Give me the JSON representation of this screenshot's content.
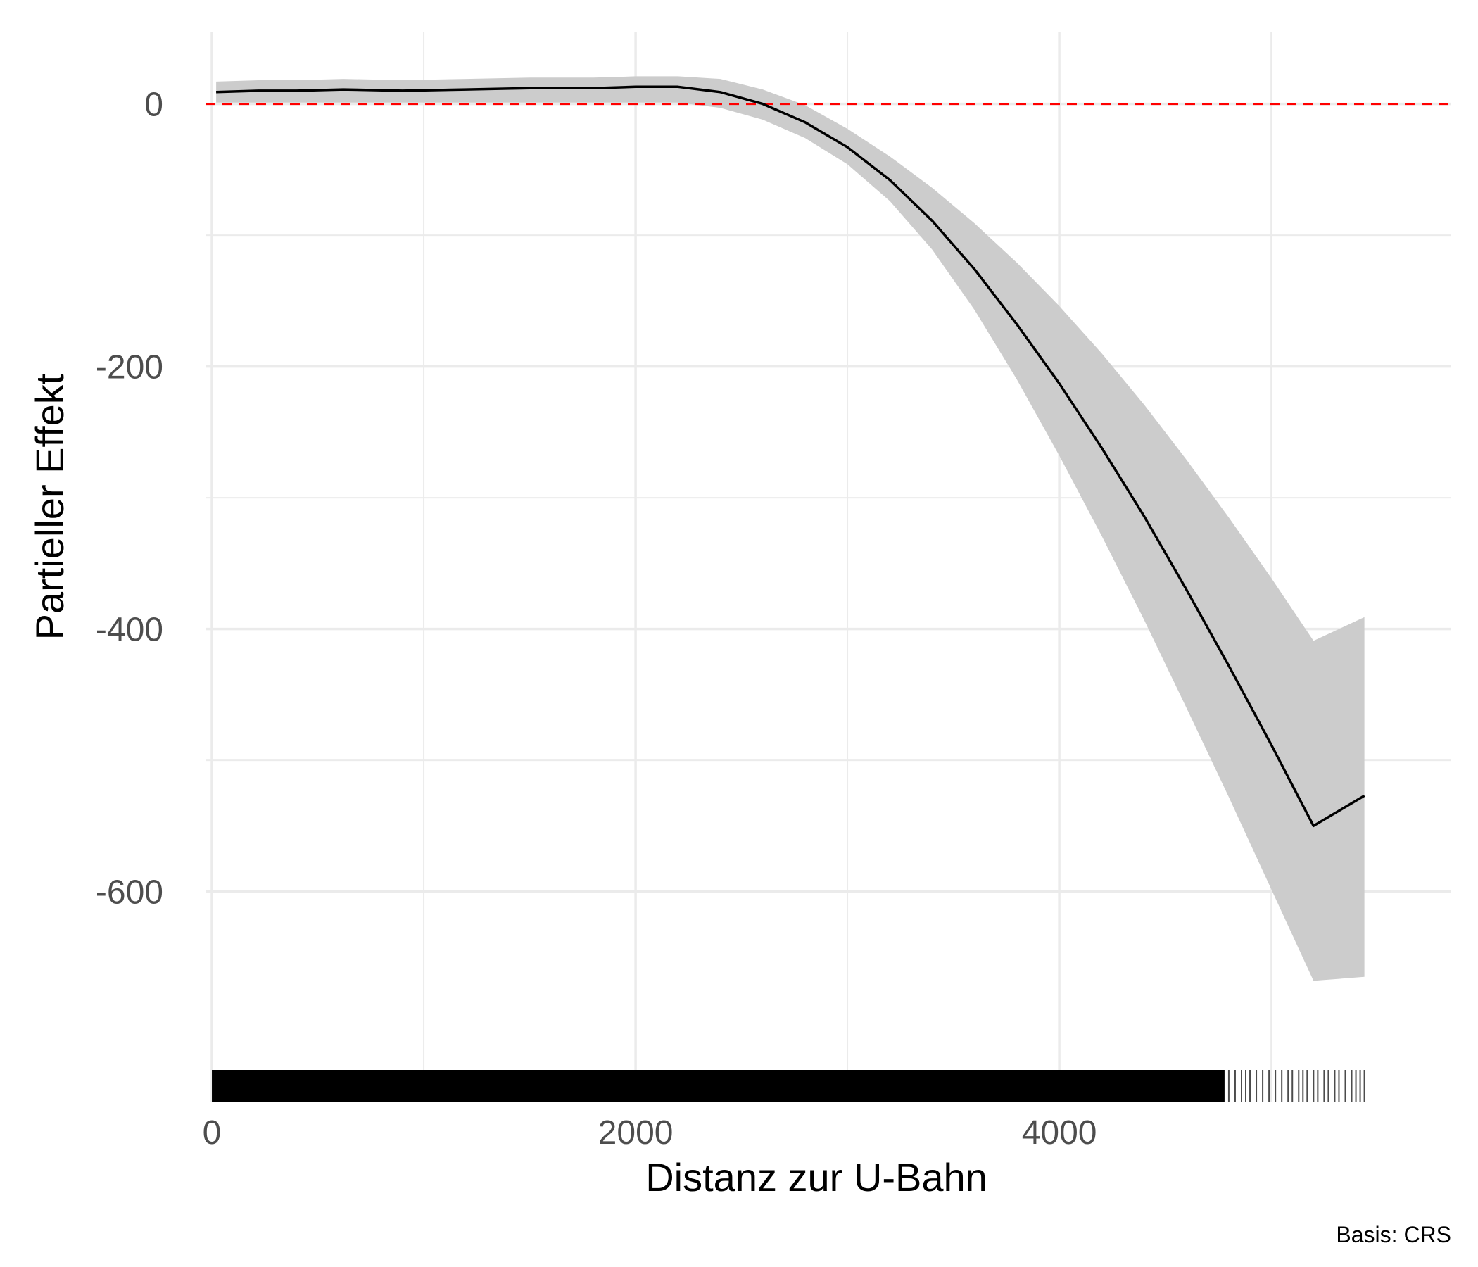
{
  "chart_data": {
    "type": "line",
    "title": "",
    "xlabel": "Distanz zur U-Bahn",
    "ylabel": "Partieller Effekt",
    "caption": "Basis: CRS",
    "xlim": [
      -30,
      5850
    ],
    "ylim": [
      -760,
      55
    ],
    "x_ticks": [
      0,
      2000,
      4000
    ],
    "x_tick_labels": [
      "0",
      "2000",
      "4000"
    ],
    "x_minor_gridlines": [
      1000,
      3000,
      5000
    ],
    "y_ticks": [
      0,
      -200,
      -400,
      -600
    ],
    "y_tick_labels": [
      "0",
      "-200",
      "-400",
      "-600"
    ],
    "y_minor_gridlines": [
      -100,
      -300,
      -500
    ],
    "grid": true,
    "reference_line": {
      "y": 0,
      "color": "#ff0000",
      "style": "dashed"
    },
    "colors": {
      "line": "#000000",
      "band": "#cccccc",
      "grid": "#ebebeb",
      "rug": "#000000"
    },
    "series": [
      {
        "name": "Partieller Effekt",
        "x": [
          20,
          220,
          400,
          620,
          900,
          1200,
          1500,
          1800,
          2000,
          2200,
          2400,
          2600,
          2800,
          3000,
          3200,
          3400,
          3600,
          3800,
          4000,
          4200,
          4400,
          4600,
          4800,
          5000,
          5200,
          5440
        ],
        "y": [
          9,
          10,
          10,
          11,
          10,
          11,
          12,
          12,
          13,
          13,
          9,
          0,
          -14,
          -33,
          -58,
          -89,
          -126,
          -168,
          -213,
          -262,
          -314,
          -370,
          -428,
          -488,
          -550,
          -527
        ],
        "lower": [
          1,
          1,
          1,
          1,
          1,
          1,
          1,
          1,
          1,
          1,
          -3,
          -12,
          -26,
          -46,
          -74,
          -111,
          -157,
          -210,
          -268,
          -329,
          -393,
          -460,
          -528,
          -598,
          -668,
          -665
        ],
        "upper": [
          17,
          18,
          18,
          19,
          18,
          19,
          20,
          20,
          21,
          21,
          19,
          11,
          -1,
          -19,
          -40,
          -64,
          -91,
          -121,
          -154,
          -190,
          -229,
          -271,
          -315,
          -361,
          -409,
          -391
        ]
      }
    ],
    "rug": {
      "dense_range": [
        0,
        4780
      ],
      "sparse_x": [
        4800,
        4830,
        4860,
        4880,
        4900,
        4930,
        4960,
        4990,
        5020,
        5050,
        5080,
        5100,
        5130,
        5150,
        5170,
        5200,
        5220,
        5250,
        5270,
        5300,
        5320,
        5350,
        5380,
        5400,
        5420,
        5440
      ]
    }
  }
}
